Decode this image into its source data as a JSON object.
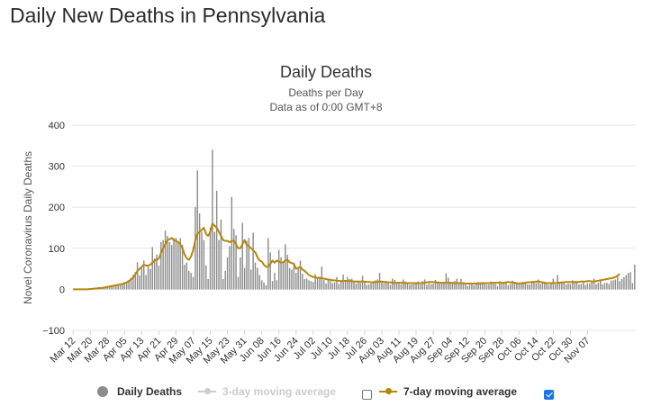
{
  "page": {
    "title": "Daily New Deaths in Pennsylvania"
  },
  "chart_data": {
    "type": "bar",
    "title": "Daily Deaths",
    "subtitle": "Deaths per Day",
    "note": "Data as of 0:00 GMT+8",
    "ylabel": "Novel Coronavirus Daily Deaths",
    "xlabel": "",
    "ylim": [
      -100,
      400
    ],
    "yticks": [
      -100,
      0,
      100,
      200,
      300,
      400
    ],
    "grid": true,
    "start_date": "Mar 12",
    "x_tick_labels": [
      "Mar 12",
      "Mar 20",
      "Mar 28",
      "Apr 05",
      "Apr 13",
      "Apr 21",
      "Apr 29",
      "May 07",
      "May 15",
      "May 23",
      "May 31",
      "Jun 08",
      "Jun 16",
      "Jun 24",
      "Jul 02",
      "Jul 10",
      "Jul 18",
      "Jul 26",
      "Aug 03",
      "Aug 11",
      "Aug 19",
      "Aug 27",
      "Sep 04",
      "Sep 12",
      "Sep 20",
      "Sep 28",
      "Oct 06",
      "Oct 14",
      "Oct 22",
      "Oct 30",
      "Nov 07"
    ],
    "series": [
      {
        "name": "Daily Deaths",
        "type": "bar",
        "color": "#8c8c8c",
        "visible": true,
        "values": [
          0,
          0,
          0,
          0,
          0,
          0,
          0,
          0,
          1,
          1,
          2,
          2,
          3,
          4,
          4,
          5,
          6,
          8,
          8,
          9,
          10,
          11,
          12,
          13,
          16,
          18,
          22,
          28,
          35,
          42,
          66,
          34,
          55,
          70,
          35,
          60,
          50,
          103,
          75,
          85,
          58,
          115,
          120,
          143,
          130,
          115,
          108,
          125,
          125,
          115,
          125,
          108,
          60,
          65,
          45,
          40,
          30,
          200,
          290,
          185,
          140,
          120,
          58,
          25,
          150,
          340,
          140,
          240,
          120,
          170,
          25,
          45,
          78,
          105,
          225,
          148,
          132,
          30,
          78,
          162,
          52,
          118,
          125,
          48,
          138,
          65,
          52,
          35,
          22,
          17,
          10,
          125,
          90,
          20,
          40,
          22,
          96,
          78,
          67,
          110,
          84,
          52,
          48,
          65,
          40,
          50,
          70,
          38,
          25,
          26,
          22,
          20,
          18,
          37,
          28,
          30,
          55,
          23,
          14,
          22,
          20,
          15,
          17,
          30,
          13,
          21,
          36,
          19,
          30,
          25,
          26,
          19,
          14,
          19,
          16,
          33,
          20,
          11,
          12,
          14,
          20,
          22,
          24,
          40,
          19,
          15,
          20,
          17,
          11,
          26,
          23,
          17,
          14,
          12,
          24,
          19,
          14,
          11,
          12,
          17,
          13,
          19,
          12,
          20,
          24,
          11,
          15,
          13,
          14,
          23,
          16,
          14,
          17,
          14,
          39,
          28,
          14,
          15,
          20,
          26,
          14,
          25,
          13,
          12,
          8,
          11,
          15,
          10,
          14,
          18,
          13,
          14,
          15,
          11,
          12,
          19,
          14,
          13,
          8,
          20,
          16,
          16,
          18,
          10,
          13,
          21,
          14,
          15,
          14,
          16,
          18,
          16,
          12,
          12,
          20,
          20,
          15,
          24,
          13,
          18,
          15,
          16,
          11,
          14,
          26,
          12,
          35,
          16,
          18,
          15,
          12,
          14,
          13,
          22,
          20,
          20,
          12,
          13,
          17,
          11,
          15,
          14,
          18,
          26,
          13,
          16,
          20,
          12,
          15,
          16,
          13,
          21,
          22,
          24,
          30,
          20,
          25,
          30,
          35,
          40,
          42,
          15,
          60
        ]
      },
      {
        "name": "3-day moving average",
        "type": "line",
        "color": "#cccccc",
        "visible": false
      },
      {
        "name": "7-day moving average",
        "type": "line",
        "color": "#b8860b",
        "visible": true,
        "values": [
          0,
          0,
          0,
          0,
          0,
          0,
          0,
          0,
          1,
          1,
          2,
          2,
          3,
          3,
          4,
          5,
          6,
          7,
          8,
          9,
          10,
          11,
          12,
          13,
          15,
          17,
          20,
          24,
          29,
          36,
          45,
          50,
          55,
          60,
          58,
          58,
          60,
          65,
          70,
          72,
          75,
          88,
          100,
          110,
          120,
          122,
          125,
          120,
          118,
          115,
          110,
          100,
          85,
          75,
          72,
          80,
          95,
          120,
          135,
          140,
          145,
          150,
          135,
          130,
          140,
          160,
          155,
          150,
          140,
          130,
          120,
          118,
          118,
          115,
          118,
          118,
          110,
          100,
          100,
          110,
          120,
          108,
          105,
          100,
          95,
          90,
          78,
          70,
          68,
          60,
          55,
          55,
          62,
          70,
          65,
          70,
          68,
          65,
          66,
          70,
          72,
          66,
          64,
          62,
          50,
          52,
          55,
          48,
          45,
          40,
          35,
          32,
          30,
          29,
          28,
          28,
          27,
          26,
          25,
          24,
          23,
          22,
          22,
          21,
          21,
          20,
          20,
          21,
          20,
          20,
          20,
          19,
          19,
          19,
          19,
          19,
          19,
          18,
          18,
          17,
          17,
          18,
          18,
          19,
          19,
          18,
          18,
          17,
          17,
          16,
          16,
          16,
          16,
          16,
          16,
          15,
          15,
          15,
          15,
          15,
          15,
          15,
          15,
          15,
          16,
          17,
          18,
          18,
          18,
          17,
          17,
          16,
          16,
          16,
          16,
          16,
          16,
          16,
          15,
          15,
          15,
          15,
          15,
          14,
          14,
          14,
          14,
          14,
          14,
          14,
          15,
          15,
          15,
          15,
          15,
          16,
          16,
          16,
          16,
          16,
          16,
          16,
          17,
          18,
          17,
          17,
          16,
          15,
          14,
          15,
          15,
          16,
          17,
          17,
          18,
          18,
          19,
          19,
          18,
          17,
          16,
          15,
          15,
          15,
          15,
          15,
          16,
          16,
          17,
          17,
          18,
          18,
          18,
          18,
          18,
          18,
          18,
          19,
          19,
          19,
          20,
          20,
          19,
          19,
          20,
          21,
          22,
          23,
          24,
          25,
          26,
          27,
          28,
          30,
          33,
          38
        ]
      }
    ]
  },
  "legend": {
    "items": [
      {
        "label": "Daily Deaths",
        "has_checkbox": false,
        "checked": false
      },
      {
        "label": "3-day moving average",
        "has_checkbox": true,
        "checked": false
      },
      {
        "label": "7-day moving average",
        "has_checkbox": true,
        "checked": true
      }
    ]
  }
}
